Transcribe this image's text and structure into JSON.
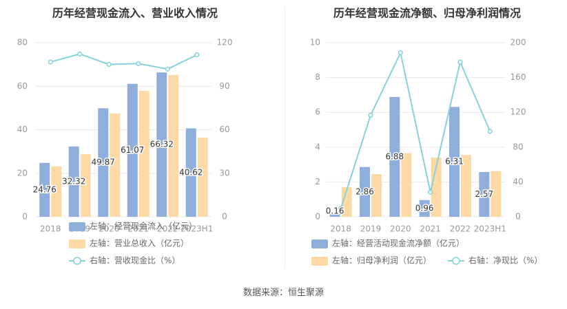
{
  "colors": {
    "bar_primary": "#8eaedc",
    "bar_secondary": "#fdd9a6",
    "line": "#86d2dc",
    "grid": "#e8e8e8",
    "text": "#999999",
    "title": "#333333",
    "label": "#333333"
  },
  "source": "数据来源：恒生聚源",
  "chart_data": [
    {
      "type": "bar",
      "title": "历年经营现金流入、营业收入情况",
      "categories": [
        "2018",
        "2019",
        "2020",
        "2021",
        "2022",
        "2023H1"
      ],
      "ylim_left": [
        0,
        80
      ],
      "yticks_left": [
        0,
        20,
        40,
        60,
        80
      ],
      "ylim_right": [
        0,
        120
      ],
      "yticks_right": [
        0,
        30,
        60,
        90,
        120
      ],
      "grid": true,
      "legend_position": "bottom",
      "series": [
        {
          "name": "左轴：经营现金流入（亿元）",
          "type": "bar",
          "axis": "left",
          "values": [
            24.76,
            32.32,
            49.87,
            61.07,
            66.32,
            40.62
          ],
          "labels": [
            "24.76",
            "32.32",
            "49.87",
            "61.07",
            "66.32",
            "40.62"
          ]
        },
        {
          "name": "左轴：营业总收入（亿元）",
          "type": "bar",
          "axis": "left",
          "values": [
            23.2,
            28.8,
            47.5,
            57.8,
            65.2,
            36.4
          ]
        },
        {
          "name": "右轴：营收现金比（%）",
          "type": "line",
          "axis": "right",
          "values": [
            106.7,
            112.2,
            105.0,
            105.6,
            101.8,
            111.6
          ]
        }
      ]
    },
    {
      "type": "bar",
      "title": "历年经营现金流净额、归母净利润情况",
      "categories": [
        "2018",
        "2019",
        "2020",
        "2021",
        "2022",
        "2023H1"
      ],
      "ylim_left": [
        0,
        10
      ],
      "yticks_left": [
        0,
        2,
        4,
        6,
        8,
        10
      ],
      "ylim_right": [
        0,
        200
      ],
      "yticks_right": [
        0,
        40,
        80,
        120,
        160,
        200
      ],
      "grid": true,
      "legend_position": "bottom",
      "series": [
        {
          "name": "左轴：经营活动现金流净额（亿元）",
          "type": "bar",
          "axis": "left",
          "values": [
            0.16,
            2.86,
            6.88,
            0.96,
            6.31,
            2.57
          ],
          "labels": [
            "0.16",
            "2.86",
            "6.88",
            "0.96",
            "6.31",
            "2.57"
          ]
        },
        {
          "name": "左轴：归母净利润（亿元）",
          "type": "bar",
          "axis": "left",
          "values": [
            1.7,
            2.45,
            3.65,
            3.4,
            3.55,
            2.62
          ]
        },
        {
          "name": "右轴：净现比（%）",
          "type": "line",
          "axis": "right",
          "values": [
            9.4,
            116.7,
            188.5,
            28.2,
            177.7,
            98.1
          ]
        }
      ]
    }
  ]
}
